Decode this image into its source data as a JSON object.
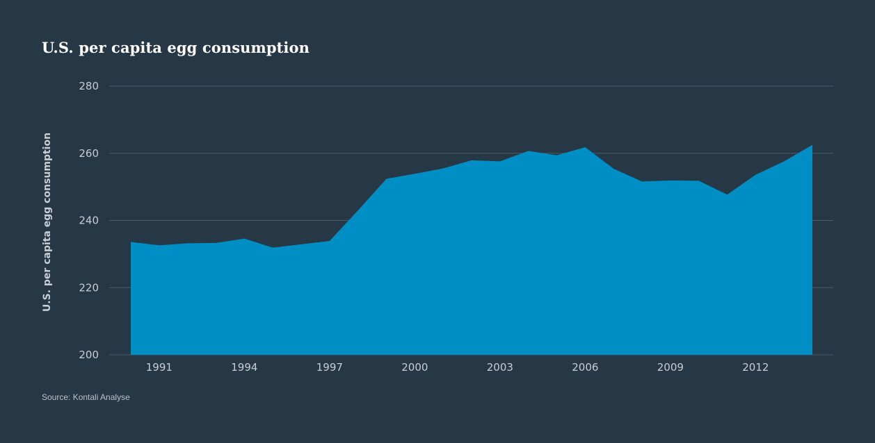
{
  "title": "U.S. per capita egg consumption",
  "source": "Source: Kontali Analyse",
  "colors": {
    "background": "#263746",
    "area": "#008fc4",
    "grid": "#4a5a69",
    "text": "#c7ced4"
  },
  "chart_data": {
    "type": "area",
    "title": "U.S. per capita egg consumption",
    "xlabel": "",
    "ylabel": "U.S. per capita egg consumption",
    "ylim": [
      200,
      280
    ],
    "xlim": [
      1990,
      2014
    ],
    "yticks": [
      "200",
      "220",
      "240",
      "260",
      "280"
    ],
    "xticks": [
      "1991",
      "1994",
      "1997",
      "2000",
      "2003",
      "2006",
      "2009",
      "2012"
    ],
    "grid": true,
    "series": [
      {
        "x": [
          1990,
          1991,
          1992,
          1993,
          1994,
          1995,
          1996,
          1997,
          1998,
          1999,
          2000,
          2001,
          2002,
          2003,
          2004,
          2005,
          2006,
          2007,
          2008,
          2009,
          2010,
          2011,
          2012,
          2013,
          2014
        ],
        "values": [
          233.6,
          232.6,
          233.2,
          233.3,
          234.6,
          231.9,
          232.9,
          233.9,
          243.0,
          252.4,
          253.9,
          255.5,
          257.9,
          257.6,
          260.7,
          259.4,
          261.8,
          255.4,
          251.6,
          251.9,
          251.8,
          247.7,
          253.6,
          257.6,
          262.5
        ]
      }
    ]
  }
}
